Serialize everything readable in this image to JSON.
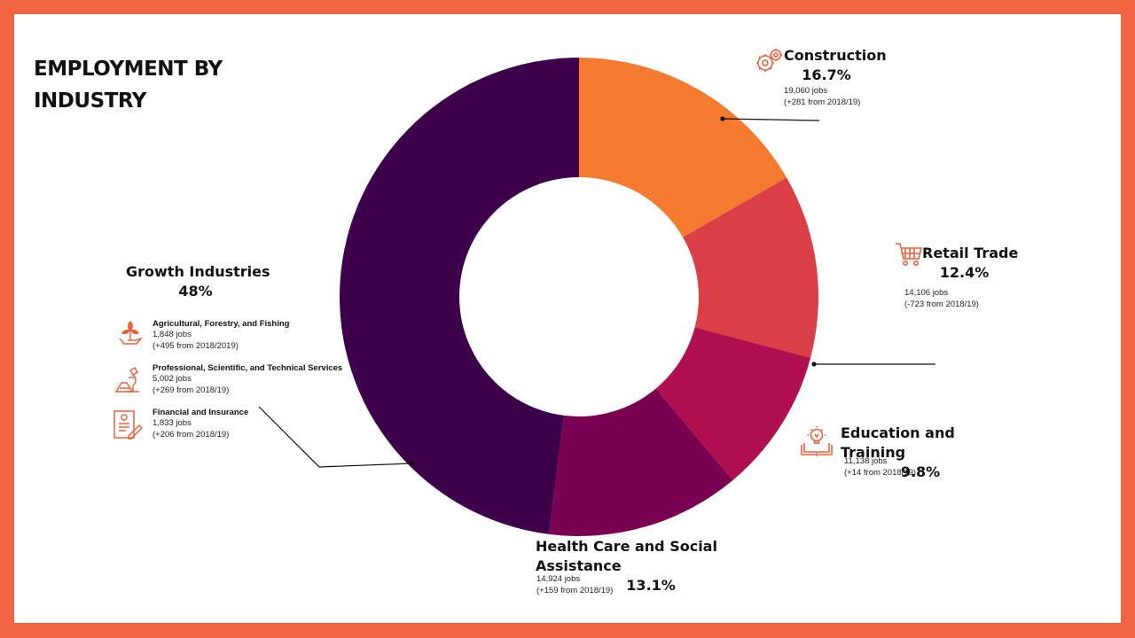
{
  "title": "EMPLOYMENT BY INDUSTRY",
  "colors": {
    "frame": "#f0643f",
    "icon": "#e8603c",
    "construction": "#f47a2f",
    "retail": "#d93f45",
    "education": "#b0104f",
    "health": "#7a0152",
    "growth": "#3d004b"
  },
  "labels": {
    "construction": {
      "name": "Construction",
      "pct": "16.7%",
      "jobs": "19,060 jobs",
      "change": "(+281 from 2018/19)"
    },
    "retail": {
      "name": "Retail Trade",
      "pct": "12.4%",
      "jobs": "14,106 jobs",
      "change": "(-723 from 2018/19)"
    },
    "education": {
      "name": "Education and Training",
      "pct": "9.8%",
      "jobs": "11,138 jobs",
      "change": "(+14 from 2018/19)"
    },
    "health": {
      "name": "Health Care and Social Assistance",
      "pct": "13.1%",
      "jobs": "14,924 jobs",
      "change": "(+159 from 2018/19)"
    },
    "growth": {
      "name": "Growth Industries",
      "pct": "48%",
      "items": [
        {
          "name": "Agricultural, Forestry, and Fishing",
          "jobs": "1,848 jobs",
          "change": "(+495 from 2018/2019)",
          "icon": "plant-hand-icon"
        },
        {
          "name": "Professional, Scientific, and Technical Services",
          "jobs": "5,002 jobs",
          "change": "(+269 from 2018/19)",
          "icon": "microscope-icon"
        },
        {
          "name": "Financial and Insurance",
          "jobs": "1,833 jobs",
          "change": "(+206 from 2018/19)",
          "icon": "document-signing-icon"
        }
      ]
    }
  },
  "icons": {
    "construction": "gears-icon",
    "retail": "shopping-cart-icon",
    "education": "book-lightbulb-icon"
  },
  "chart_data": {
    "type": "pie",
    "donut": true,
    "categories": [
      "Construction",
      "Retail Trade",
      "Education and Training",
      "Health Care and Social Assistance",
      "Growth Industries"
    ],
    "values": [
      16.7,
      12.4,
      9.8,
      13.1,
      48
    ],
    "colors": [
      "#f47a2f",
      "#d93f45",
      "#b0104f",
      "#7a0152",
      "#3d004b"
    ],
    "start": "top, clockwise"
  }
}
